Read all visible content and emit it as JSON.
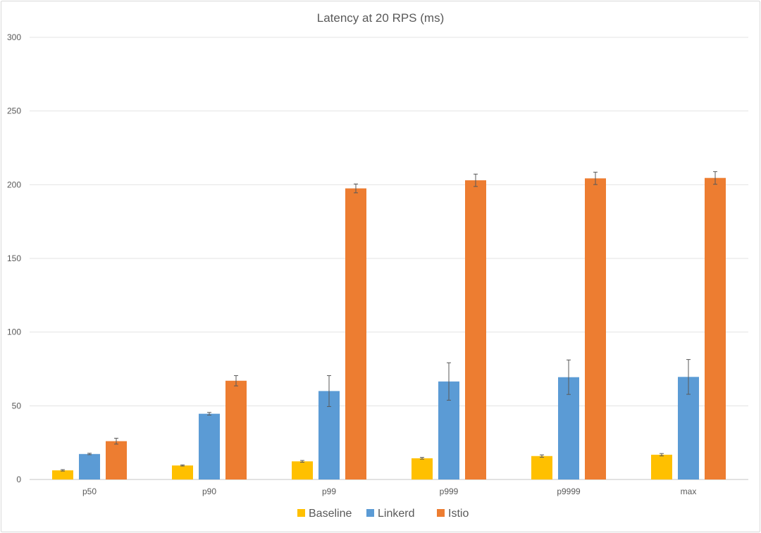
{
  "chart_data": {
    "type": "bar",
    "title": "Latency at 20 RPS (ms)",
    "xlabel": "",
    "ylabel": "",
    "ylim": [
      0,
      300
    ],
    "yticks": [
      0,
      50,
      100,
      150,
      200,
      250,
      300
    ],
    "grid": true,
    "legend_position": "bottom",
    "categories": [
      "p50",
      "p90",
      "p99",
      "p999",
      "p9999",
      "max"
    ],
    "series": [
      {
        "name": "Baseline",
        "color": "#FFC000",
        "values": [
          6.2,
          9.5,
          12.3,
          14.4,
          15.9,
          16.8
        ],
        "errors": [
          0.5,
          0.4,
          0.6,
          0.6,
          0.8,
          0.8
        ]
      },
      {
        "name": "Linkerd",
        "color": "#5B9BD5",
        "values": [
          17.3,
          44.6,
          60.0,
          66.5,
          69.4,
          69.6
        ],
        "errors": [
          0.5,
          0.9,
          10.5,
          12.7,
          11.7,
          11.8
        ]
      },
      {
        "name": "Istio",
        "color": "#ED7D31",
        "values": [
          26.0,
          67.0,
          197.5,
          203.0,
          204.3,
          204.6
        ],
        "errors": [
          2.0,
          3.5,
          3.0,
          4.2,
          4.2,
          4.3
        ]
      }
    ]
  }
}
